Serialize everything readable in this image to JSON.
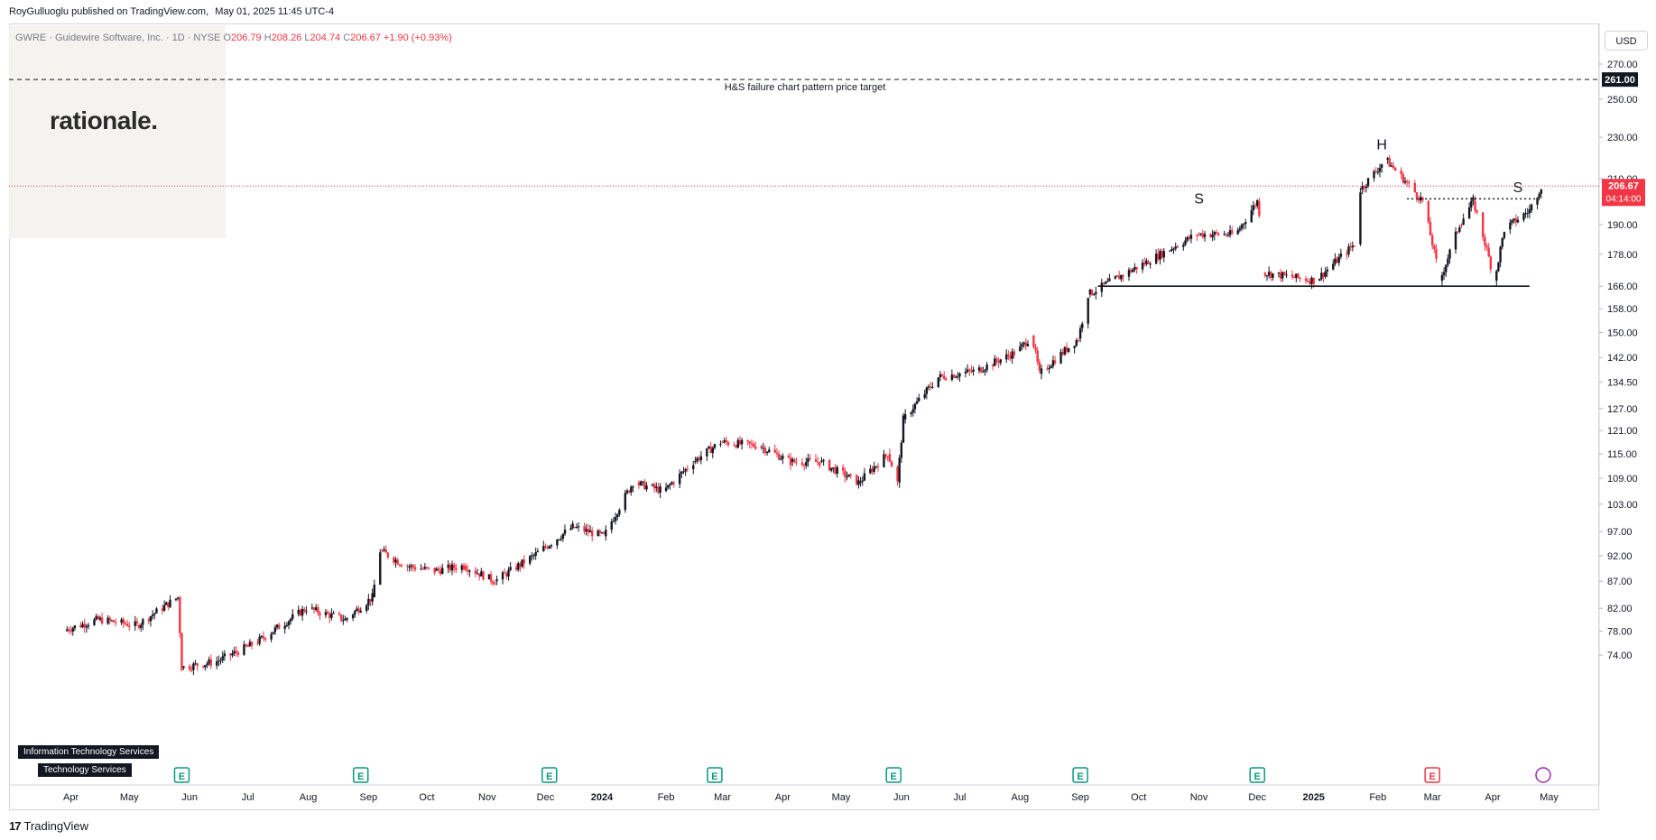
{
  "header": {
    "publisher": "RoyGulluoglu published on TradingView.com,",
    "date": "May 01, 2025 11:45 UTC-4"
  },
  "symbol": {
    "name": "GWRE · Guidewire Software, Inc. · 1D · NYSE",
    "o_label": "O",
    "o": "206.79",
    "h_label": "H",
    "h": "208.26",
    "l_label": "L",
    "l": "204.74",
    "c_label": "C",
    "c": "206.67",
    "change": "+1.90 (+0.93%)"
  },
  "logo": {
    "text": "rationale."
  },
  "sectors": [
    "Information Technology Services",
    "Technology Services"
  ],
  "currency": "USD",
  "footer": {
    "brand": "TradingView",
    "mark": "17"
  },
  "chart_data": {
    "type": "candlestick",
    "title": "GWRE · Guidewire Software, Inc. · 1D · NYSE",
    "y_scale": "log",
    "ylim": [
      72,
      300
    ],
    "y_ticks": [
      "270.00",
      "250.00",
      "230.00",
      "210.00",
      "190.00",
      "178.00",
      "166.00",
      "158.00",
      "150.00",
      "142.00",
      "134.50",
      "127.00",
      "121.00",
      "115.00",
      "109.00",
      "103.00",
      "97.00",
      "92.00",
      "87.00",
      "82.00",
      "78.00",
      "74.00"
    ],
    "x_labels": [
      "Apr",
      "May",
      "Jun",
      "Jul",
      "Aug",
      "Sep",
      "Oct",
      "Nov",
      "Dec",
      "2024",
      "Feb",
      "Mar",
      "Apr",
      "May",
      "Jun",
      "Jul",
      "Aug",
      "Sep",
      "Oct",
      "Nov",
      "Dec",
      "2025",
      "Feb",
      "Mar",
      "Apr",
      "May"
    ],
    "earnings_markers": [
      "Jun",
      "Sep",
      "Dec",
      "Mar",
      "Jun",
      "Sep",
      "Dec",
      "Mar"
    ],
    "earnings_label": "E",
    "series": [
      {
        "points": [
          [
            "2023-04-01",
            78
          ],
          [
            "2023-04-20",
            80
          ],
          [
            "2023-05-10",
            79
          ],
          [
            "2023-05-31",
            84
          ],
          [
            "2023-06-02",
            72
          ],
          [
            "2023-06-20",
            73
          ],
          [
            "2023-07-10",
            76
          ],
          [
            "2023-08-05",
            82
          ],
          [
            "2023-08-25",
            80
          ],
          [
            "2023-09-08",
            84
          ],
          [
            "2023-09-12",
            93
          ],
          [
            "2023-09-25",
            90
          ],
          [
            "2023-10-10",
            89
          ],
          [
            "2023-10-25",
            90
          ],
          [
            "2023-11-10",
            87
          ],
          [
            "2023-11-30",
            92
          ],
          [
            "2023-12-20",
            98
          ],
          [
            "2024-01-05",
            96
          ],
          [
            "2024-01-20",
            108
          ],
          [
            "2024-02-05",
            106
          ],
          [
            "2024-02-20",
            113
          ],
          [
            "2024-03-05",
            118
          ],
          [
            "2024-03-25",
            117
          ],
          [
            "2024-04-10",
            113
          ],
          [
            "2024-04-25",
            113
          ],
          [
            "2024-05-15",
            108
          ],
          [
            "2024-05-30",
            115
          ],
          [
            "2024-06-04",
            108
          ],
          [
            "2024-06-07",
            124
          ],
          [
            "2024-06-25",
            136
          ],
          [
            "2024-07-15",
            138
          ],
          [
            "2024-08-05",
            144
          ],
          [
            "2024-08-12",
            149
          ],
          [
            "2024-08-16",
            137
          ],
          [
            "2024-09-05",
            148
          ],
          [
            "2024-09-10",
            163
          ],
          [
            "2024-10-10",
            175
          ],
          [
            "2024-11-05",
            186
          ],
          [
            "2024-11-25",
            186
          ],
          [
            "2024-12-06",
            200
          ],
          [
            "2024-12-08",
            190
          ],
          [
            "2024-12-09",
            171
          ],
          [
            "2025-01-05",
            168
          ],
          [
            "2025-01-25",
            182
          ],
          [
            "2025-01-28",
            205
          ],
          [
            "2025-02-10",
            219
          ],
          [
            "2025-03-01",
            200
          ],
          [
            "2025-03-10",
            168
          ],
          [
            "2025-03-20",
            190
          ],
          [
            "2025-03-27",
            200
          ],
          [
            "2025-04-07",
            168
          ],
          [
            "2025-04-12",
            188
          ],
          [
            "2025-04-25",
            196
          ],
          [
            "2025-05-01",
            206.67
          ]
        ]
      }
    ],
    "annotations": {
      "target_text": "H&S failure chart pattern price target",
      "target_price": "261.00",
      "neckline_price": 166,
      "resistance_price": 201,
      "last_price": "206.67",
      "countdown": "04:14:00",
      "pattern_labels": [
        "S",
        "H",
        "S"
      ]
    },
    "colors": {
      "up": "#131722",
      "down": "#f23645",
      "last_price": "#f23645",
      "target": "#131722"
    }
  }
}
